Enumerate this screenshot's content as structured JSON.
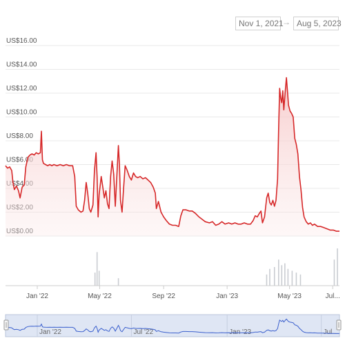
{
  "range_selector": {
    "from": "Nov 1, 2021",
    "arrow": "→",
    "to": "Aug 5, 2023"
  },
  "colors": {
    "line": "#d62728",
    "area_top": "#f6c7c7",
    "volume": "#c9ccd1",
    "navigator_line": "#3a5fcd",
    "navigator_fill": "#dfe6f4"
  },
  "chart_data": {
    "type": "area",
    "title": "",
    "xlabel": "",
    "ylabel": "",
    "x_range": [
      "2021-11-01",
      "2023-08-05"
    ],
    "ylim": [
      0,
      16
    ],
    "y_ticks": [
      {
        "value": 0,
        "label": "US$0.00"
      },
      {
        "value": 2,
        "label": "US$2.00"
      },
      {
        "value": 4,
        "label": "US$4.00"
      },
      {
        "value": 6,
        "label": "US$6.00"
      },
      {
        "value": 8,
        "label": "US$8.00"
      },
      {
        "value": 10,
        "label": "US$10.00"
      },
      {
        "value": 12,
        "label": "US$12.00"
      },
      {
        "value": 14,
        "label": "US$14.00"
      },
      {
        "value": 16,
        "label": "US$16.00"
      }
    ],
    "x_ticks": [
      {
        "date": "2022-01-01",
        "label": "Jan '22"
      },
      {
        "date": "2022-05-01",
        "label": "May '22"
      },
      {
        "date": "2022-09-01",
        "label": "Sep '22"
      },
      {
        "date": "2023-01-01",
        "label": "Jan '23"
      },
      {
        "date": "2023-05-01",
        "label": "May '23"
      }
    ],
    "x_tick_partial": {
      "date": "2023-07-23",
      "label": "Jul..."
    },
    "navigator_ticks": [
      {
        "date": "2022-01-01",
        "label": "Jan '22"
      },
      {
        "date": "2022-07-01",
        "label": "Jul '22"
      },
      {
        "date": "2023-01-01",
        "label": "Jan '23"
      },
      {
        "date": "2023-07-01",
        "label": "Jul..."
      }
    ],
    "series": [
      {
        "points": [
          [
            "2021-11-01",
            5.9
          ],
          [
            "2021-11-05",
            5.7
          ],
          [
            "2021-11-09",
            5.8
          ],
          [
            "2021-11-13",
            5.5
          ],
          [
            "2021-11-15",
            4.6
          ],
          [
            "2021-11-18",
            3.9
          ],
          [
            "2021-11-22",
            4.2
          ],
          [
            "2021-11-26",
            3.8
          ],
          [
            "2021-11-29",
            3.2
          ],
          [
            "2021-12-03",
            4.1
          ],
          [
            "2021-12-07",
            4.3
          ],
          [
            "2021-12-10",
            5.8
          ],
          [
            "2021-12-14",
            6.6
          ],
          [
            "2021-12-18",
            6.8
          ],
          [
            "2021-12-22",
            6.9
          ],
          [
            "2021-12-26",
            6.8
          ],
          [
            "2021-12-30",
            7.0
          ],
          [
            "2022-01-03",
            6.9
          ],
          [
            "2022-01-07",
            7.0
          ],
          [
            "2022-01-09",
            8.8
          ],
          [
            "2022-01-11",
            6.4
          ],
          [
            "2022-01-13",
            6.1
          ],
          [
            "2022-01-17",
            6.0
          ],
          [
            "2022-01-21",
            5.9
          ],
          [
            "2022-01-25",
            6.0
          ],
          [
            "2022-01-29",
            5.9
          ],
          [
            "2022-02-02",
            6.0
          ],
          [
            "2022-02-08",
            5.9
          ],
          [
            "2022-02-14",
            6.0
          ],
          [
            "2022-02-20",
            5.9
          ],
          [
            "2022-02-26",
            6.0
          ],
          [
            "2022-03-04",
            5.9
          ],
          [
            "2022-03-10",
            5.9
          ],
          [
            "2022-03-14",
            5.0
          ],
          [
            "2022-03-17",
            2.5
          ],
          [
            "2022-03-21",
            2.2
          ],
          [
            "2022-03-26",
            2.0
          ],
          [
            "2022-03-30",
            2.1
          ],
          [
            "2022-04-02",
            3.0
          ],
          [
            "2022-04-05",
            4.5
          ],
          [
            "2022-04-08",
            3.6
          ],
          [
            "2022-04-11",
            2.3
          ],
          [
            "2022-04-14",
            2.0
          ],
          [
            "2022-04-18",
            2.6
          ],
          [
            "2022-04-21",
            5.5
          ],
          [
            "2022-04-24",
            7.0
          ],
          [
            "2022-04-26",
            5.0
          ],
          [
            "2022-04-28",
            1.6
          ],
          [
            "2022-04-30",
            3.5
          ],
          [
            "2022-05-04",
            5.0
          ],
          [
            "2022-05-07",
            4.1
          ],
          [
            "2022-05-10",
            3.2
          ],
          [
            "2022-05-13",
            3.8
          ],
          [
            "2022-05-16",
            2.7
          ],
          [
            "2022-05-19",
            2.3
          ],
          [
            "2022-05-22",
            5.0
          ],
          [
            "2022-05-25",
            6.3
          ],
          [
            "2022-05-28",
            5.2
          ],
          [
            "2022-05-31",
            2.5
          ],
          [
            "2022-06-03",
            5.0
          ],
          [
            "2022-06-06",
            7.6
          ],
          [
            "2022-06-08",
            6.0
          ],
          [
            "2022-06-10",
            3.0
          ],
          [
            "2022-06-13",
            2.0
          ],
          [
            "2022-06-16",
            4.0
          ],
          [
            "2022-06-19",
            5.9
          ],
          [
            "2022-06-23",
            5.5
          ],
          [
            "2022-06-27",
            5.0
          ],
          [
            "2022-07-01",
            4.7
          ],
          [
            "2022-07-05",
            5.3
          ],
          [
            "2022-07-09",
            5.0
          ],
          [
            "2022-07-13",
            4.9
          ],
          [
            "2022-07-18",
            5.0
          ],
          [
            "2022-07-23",
            4.8
          ],
          [
            "2022-07-28",
            4.9
          ],
          [
            "2022-08-02",
            4.7
          ],
          [
            "2022-08-07",
            4.5
          ],
          [
            "2022-08-12",
            4.1
          ],
          [
            "2022-08-16",
            3.6
          ],
          [
            "2022-08-18",
            2.3
          ],
          [
            "2022-08-22",
            2.9
          ],
          [
            "2022-08-27",
            2.0
          ],
          [
            "2022-09-01",
            1.6
          ],
          [
            "2022-09-06",
            1.3
          ],
          [
            "2022-09-12",
            1.0
          ],
          [
            "2022-09-18",
            0.9
          ],
          [
            "2022-09-24",
            0.9
          ],
          [
            "2022-09-30",
            0.8
          ],
          [
            "2022-10-04",
            1.7
          ],
          [
            "2022-10-08",
            2.2
          ],
          [
            "2022-10-14",
            2.2
          ],
          [
            "2022-10-20",
            2.1
          ],
          [
            "2022-10-26",
            2.1
          ],
          [
            "2022-11-01",
            1.9
          ],
          [
            "2022-11-08",
            1.6
          ],
          [
            "2022-11-14",
            1.4
          ],
          [
            "2022-11-20",
            1.2
          ],
          [
            "2022-11-28",
            1.1
          ],
          [
            "2022-12-04",
            1.2
          ],
          [
            "2022-12-10",
            0.9
          ],
          [
            "2022-12-16",
            1.0
          ],
          [
            "2022-12-22",
            1.2
          ],
          [
            "2022-12-28",
            1.0
          ],
          [
            "2023-01-04",
            1.1
          ],
          [
            "2023-01-10",
            1.0
          ],
          [
            "2023-01-16",
            1.1
          ],
          [
            "2023-01-22",
            1.0
          ],
          [
            "2023-01-28",
            1.0
          ],
          [
            "2023-02-03",
            1.1
          ],
          [
            "2023-02-09",
            1.0
          ],
          [
            "2023-02-15",
            1.0
          ],
          [
            "2023-02-20",
            1.3
          ],
          [
            "2023-02-24",
            1.7
          ],
          [
            "2023-02-28",
            1.6
          ],
          [
            "2023-03-04",
            1.9
          ],
          [
            "2023-03-07",
            2.1
          ],
          [
            "2023-03-10",
            1.1
          ],
          [
            "2023-03-14",
            1.6
          ],
          [
            "2023-03-18",
            3.2
          ],
          [
            "2023-03-21",
            3.6
          ],
          [
            "2023-03-24",
            2.8
          ],
          [
            "2023-03-27",
            2.6
          ],
          [
            "2023-03-30",
            3.0
          ],
          [
            "2023-04-02",
            2.5
          ],
          [
            "2023-04-05",
            3.0
          ],
          [
            "2023-04-08",
            4.8
          ],
          [
            "2023-04-10",
            9.0
          ],
          [
            "2023-04-12",
            12.4
          ],
          [
            "2023-04-14",
            11.6
          ],
          [
            "2023-04-16",
            11.2
          ],
          [
            "2023-04-18",
            12.2
          ],
          [
            "2023-04-20",
            10.6
          ],
          [
            "2023-04-23",
            12.3
          ],
          [
            "2023-04-25",
            13.3
          ],
          [
            "2023-04-27",
            12.2
          ],
          [
            "2023-04-29",
            11.0
          ],
          [
            "2023-05-02",
            10.5
          ],
          [
            "2023-05-05",
            10.3
          ],
          [
            "2023-05-08",
            10.0
          ],
          [
            "2023-05-11",
            8.2
          ],
          [
            "2023-05-14",
            7.7
          ],
          [
            "2023-05-17",
            6.9
          ],
          [
            "2023-05-20",
            5.0
          ],
          [
            "2023-05-23",
            3.9
          ],
          [
            "2023-05-26",
            2.4
          ],
          [
            "2023-05-29",
            1.6
          ],
          [
            "2023-06-02",
            1.2
          ],
          [
            "2023-06-06",
            1.0
          ],
          [
            "2023-06-10",
            1.1
          ],
          [
            "2023-06-14",
            0.9
          ],
          [
            "2023-06-18",
            1.0
          ],
          [
            "2023-06-24",
            0.8
          ],
          [
            "2023-06-30",
            0.8
          ],
          [
            "2023-07-06",
            0.7
          ],
          [
            "2023-07-12",
            0.6
          ],
          [
            "2023-07-18",
            0.5
          ],
          [
            "2023-07-24",
            0.5
          ],
          [
            "2023-07-30",
            0.4
          ],
          [
            "2023-08-05",
            0.4
          ]
        ]
      }
    ],
    "volume_spikes": [
      [
        "2022-04-22",
        0.35
      ],
      [
        "2022-04-26",
        0.9
      ],
      [
        "2022-04-30",
        0.4
      ],
      [
        "2022-06-06",
        0.2
      ],
      [
        "2023-03-18",
        0.3
      ],
      [
        "2023-03-24",
        0.45
      ],
      [
        "2023-04-02",
        0.5
      ],
      [
        "2023-04-10",
        0.7
      ],
      [
        "2023-04-16",
        0.55
      ],
      [
        "2023-04-22",
        0.6
      ],
      [
        "2023-04-28",
        0.45
      ],
      [
        "2023-05-06",
        0.4
      ],
      [
        "2023-05-14",
        0.35
      ],
      [
        "2023-05-22",
        0.3
      ],
      [
        "2023-07-26",
        0.7
      ],
      [
        "2023-08-01",
        1.0
      ]
    ]
  }
}
